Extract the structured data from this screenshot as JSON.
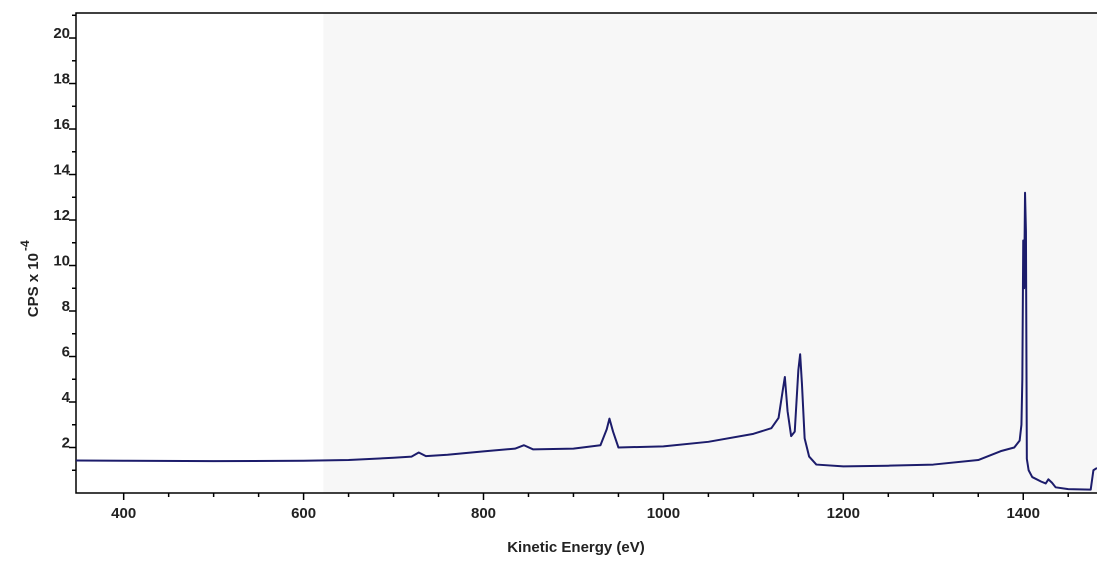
{
  "chart_data": {
    "type": "line",
    "xlabel": "Kinetic Energy (eV)",
    "ylabel": "CPS x 10",
    "ylabel_exponent": "-4",
    "xlim": [
      347,
      1482
    ],
    "ylim": [
      0,
      21.1
    ],
    "xticks": [
      400,
      600,
      800,
      1000,
      1200,
      1400
    ],
    "xticks_minor": [
      450,
      500,
      550,
      650,
      700,
      750,
      850,
      900,
      950,
      1050,
      1100,
      1150,
      1250,
      1300,
      1350,
      1450
    ],
    "yticks": [
      2,
      4,
      6,
      8,
      10,
      12,
      14,
      16,
      18,
      20
    ],
    "yticks_minor": [
      1,
      3,
      5,
      7,
      9,
      11,
      13,
      15,
      17,
      19,
      21
    ],
    "shaded_xrange": [
      622,
      1482
    ],
    "shade_color": "#f7f7f7",
    "series": [
      {
        "color": "#1c1c6b",
        "x": [
          347,
          400,
          500,
          600,
          650,
          700,
          720,
          728,
          736,
          760,
          800,
          835,
          845,
          855,
          900,
          930,
          937,
          940,
          944,
          950,
          1000,
          1050,
          1100,
          1120,
          1128,
          1133,
          1135,
          1138,
          1142,
          1146,
          1150,
          1152,
          1154,
          1157,
          1162,
          1170,
          1200,
          1250,
          1300,
          1350,
          1375,
          1390,
          1396,
          1398,
          1399,
          1400,
          1401,
          1402,
          1403,
          1404,
          1406,
          1410,
          1420,
          1425,
          1428,
          1432,
          1436,
          1450,
          1475,
          1478,
          1482
        ],
        "values": [
          1.43,
          1.42,
          1.4,
          1.42,
          1.45,
          1.55,
          1.6,
          1.78,
          1.62,
          1.68,
          1.83,
          1.95,
          2.1,
          1.92,
          1.95,
          2.1,
          2.8,
          3.27,
          2.7,
          2.0,
          2.05,
          2.25,
          2.6,
          2.85,
          3.3,
          4.6,
          5.1,
          3.6,
          2.5,
          2.7,
          5.4,
          6.1,
          4.8,
          2.4,
          1.6,
          1.25,
          1.17,
          1.2,
          1.25,
          1.45,
          1.84,
          2.0,
          2.3,
          3.0,
          5.0,
          11.1,
          9.0,
          13.2,
          11.5,
          1.5,
          1.0,
          0.7,
          0.5,
          0.42,
          0.6,
          0.45,
          0.25,
          0.17,
          0.15,
          1.0,
          1.1
        ]
      }
    ]
  }
}
